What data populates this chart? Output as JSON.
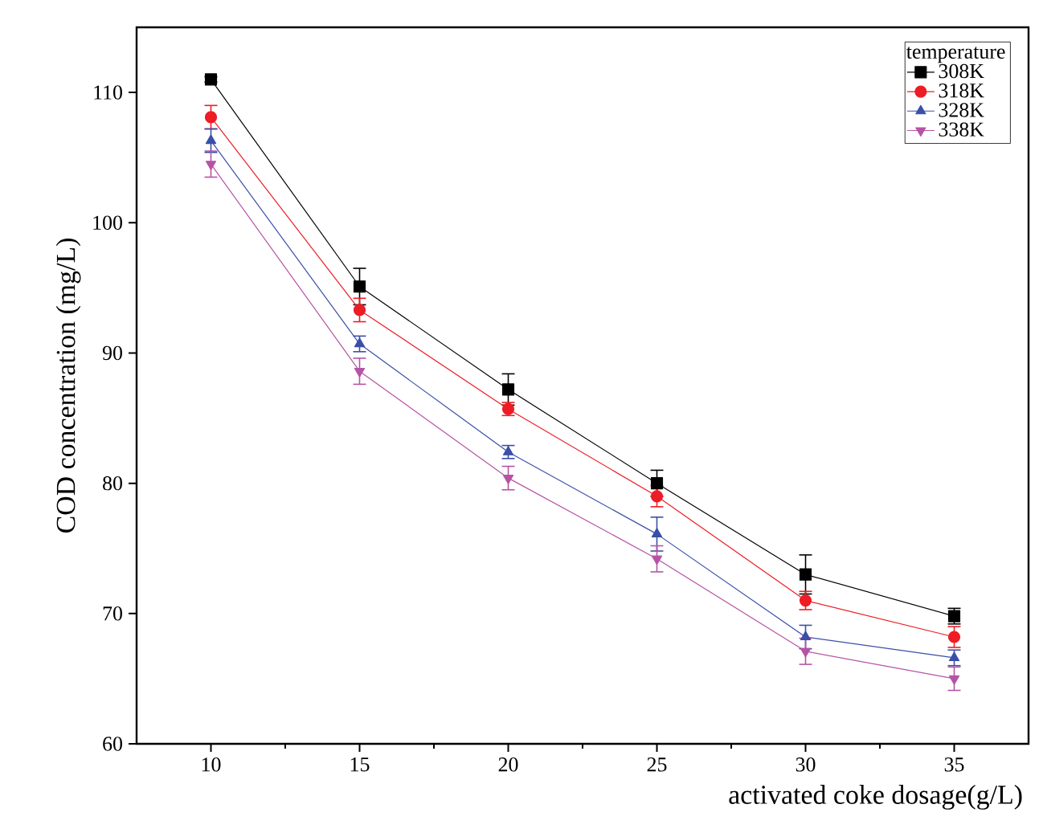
{
  "chart_data": {
    "type": "line",
    "xlabel": "activated coke dosage(g/L)",
    "ylabel": "COD concentration (mg/L)",
    "legend_title": "temperature",
    "x": [
      10,
      15,
      20,
      25,
      30,
      35
    ],
    "series": [
      {
        "name": "308K",
        "color": "#000000",
        "marker": "square",
        "values": [
          111.0,
          95.1,
          87.2,
          80.0,
          73.0,
          69.8
        ],
        "errors": [
          0.2,
          1.4,
          1.2,
          1.0,
          1.5,
          0.6
        ]
      },
      {
        "name": "318K",
        "color": "#ee1c25",
        "marker": "circle",
        "values": [
          108.1,
          93.3,
          85.7,
          79.0,
          71.0,
          68.2
        ],
        "errors": [
          0.9,
          0.9,
          0.5,
          0.8,
          0.7,
          0.8
        ]
      },
      {
        "name": "328K",
        "color": "#3a4fa8",
        "marker": "triangle",
        "values": [
          106.3,
          90.7,
          82.4,
          76.1,
          68.2,
          66.6
        ],
        "errors": [
          0.9,
          0.6,
          0.5,
          1.3,
          0.9,
          0.6
        ]
      },
      {
        "name": "338K",
        "color": "#b653a6",
        "marker": "triangle-down",
        "values": [
          104.5,
          88.6,
          80.4,
          74.2,
          67.1,
          65.0
        ],
        "errors": [
          1.0,
          1.0,
          0.9,
          1.0,
          1.0,
          0.9
        ]
      }
    ],
    "xlim": [
      7.5,
      37.5
    ],
    "ylim": [
      60,
      115
    ],
    "xticks": [
      10,
      15,
      20,
      25,
      30,
      35
    ],
    "yticks": [
      60,
      70,
      80,
      90,
      100,
      110
    ],
    "legend": "top right",
    "grid": false,
    "line_style": "solid"
  }
}
